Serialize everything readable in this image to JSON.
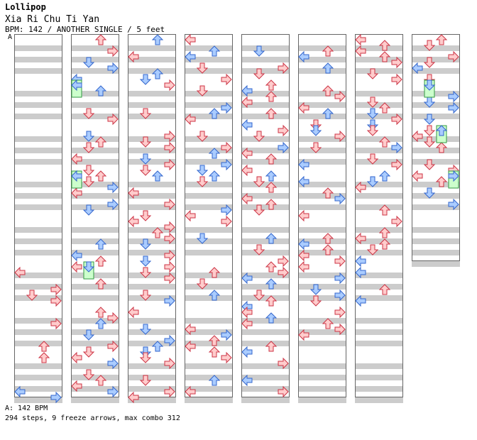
{
  "header": {
    "title": "Lollipop",
    "subtitle": "Xia Ri Chu Ti Yan",
    "info": "BPM: 142 / ANOTHER SINGLE / 5 feet",
    "bpm_marker": "A"
  },
  "footer": {
    "bpm": "A: 142 BPM",
    "stats": "294 steps, 9 freeze arrows, max combo 312"
  },
  "colors": {
    "stripe": "#cccccc",
    "measure_background": "#ffffff",
    "column_border": "#666666",
    "red_arrow": "#ffcccc",
    "red_outline": "#cc3344",
    "blue_arrow": "#aaccff",
    "blue_outline": "#3366cc",
    "freeze_body": "#ccffcc",
    "freeze_outline": "#339944"
  },
  "chart": {
    "columns": 8,
    "measures_per_column": 8,
    "total_measures": 61,
    "lanes": [
      "left",
      "down",
      "up",
      "right"
    ],
    "note_types": [
      "red",
      "blue",
      "freeze"
    ]
  }
}
